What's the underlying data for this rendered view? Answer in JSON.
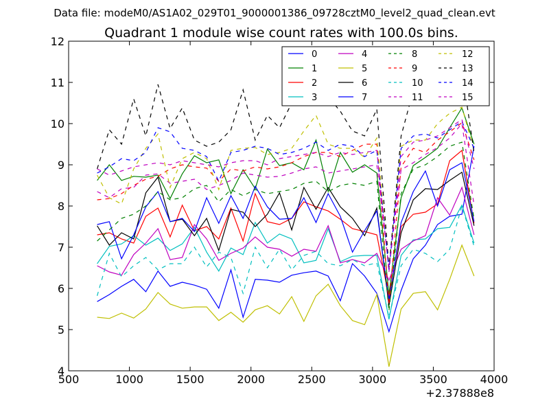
{
  "chart_data": {
    "type": "line",
    "suptitle": "Data file: modeM0/AS1A02_029T01_9000001386_09728cztM0_level2_quad_clean.evt",
    "title": "Quadrant 1 module wise count rates with 100.0s bins.",
    "xlabel": "",
    "ylabel": "",
    "x_offset_label": "+2.37888e8",
    "xlim": [
      500,
      4000
    ],
    "ylim": [
      4,
      12
    ],
    "xticks": [
      500,
      1000,
      1500,
      2000,
      2500,
      3000,
      3500,
      4000
    ],
    "yticks": [
      4,
      5,
      6,
      7,
      8,
      9,
      10,
      11,
      12
    ],
    "grid": false,
    "legend_location": "top-right",
    "legend_columns": 4,
    "x": [
      735,
      835,
      935,
      1035,
      1135,
      1235,
      1335,
      1435,
      1535,
      1635,
      1735,
      1835,
      1935,
      2035,
      2135,
      2235,
      2335,
      2435,
      2535,
      2635,
      2735,
      2835,
      2935,
      3035,
      3135,
      3235,
      3335,
      3435,
      3535,
      3635,
      3735,
      3835
    ],
    "series": [
      {
        "name": "0",
        "color": "#0000ff",
        "dash": "solid",
        "values": [
          5.68,
          5.85,
          6.05,
          6.22,
          5.92,
          6.42,
          6.05,
          6.15,
          6.08,
          5.98,
          5.52,
          6.45,
          5.3,
          6.22,
          6.2,
          6.15,
          6.32,
          6.38,
          6.42,
          6.3,
          5.7,
          6.6,
          6.3,
          5.88,
          4.95,
          5.95,
          6.72,
          7.05,
          7.55,
          7.75,
          7.8,
          9.45
        ]
      },
      {
        "name": "1",
        "color": "#008000",
        "dash": "solid",
        "values": [
          8.62,
          9.0,
          8.62,
          8.72,
          8.7,
          8.75,
          8.18,
          8.78,
          9.22,
          9.05,
          9.12,
          8.3,
          8.88,
          8.42,
          9.38,
          8.98,
          9.05,
          8.88,
          9.6,
          8.35,
          9.3,
          8.82,
          9.0,
          8.8,
          5.85,
          8.2,
          8.98,
          9.18,
          9.4,
          9.9,
          10.38,
          9.5
        ]
      },
      {
        "name": "2",
        "color": "#ff0000",
        "dash": "solid",
        "values": [
          7.3,
          7.35,
          7.2,
          7.1,
          7.75,
          7.95,
          7.25,
          8.02,
          7.4,
          7.5,
          7.2,
          7.95,
          7.15,
          8.3,
          7.62,
          7.55,
          7.7,
          8.1,
          7.98,
          7.88,
          7.68,
          7.45,
          7.38,
          7.3,
          5.78,
          7.5,
          7.8,
          7.85,
          8.05,
          9.1,
          9.35,
          7.58
        ]
      },
      {
        "name": "3",
        "color": "#00bfbf",
        "dash": "solid",
        "values": [
          6.6,
          7.02,
          7.08,
          7.28,
          7.05,
          7.22,
          6.92,
          7.08,
          7.48,
          6.88,
          6.42,
          6.98,
          6.82,
          7.6,
          7.1,
          7.32,
          7.2,
          6.62,
          6.68,
          7.45,
          6.65,
          6.78,
          6.8,
          6.8,
          5.25,
          6.8,
          7.18,
          7.2,
          7.45,
          7.48,
          8.02,
          7.1
        ]
      },
      {
        "name": "4",
        "color": "#bf00bf",
        "dash": "solid",
        "values": [
          6.55,
          6.4,
          6.32,
          6.82,
          7.1,
          7.45,
          6.7,
          6.75,
          7.55,
          7.2,
          6.68,
          6.85,
          6.98,
          7.25,
          7.0,
          6.95,
          6.78,
          6.95,
          6.9,
          7.52,
          6.62,
          6.7,
          6.62,
          6.85,
          6.2,
          6.95,
          7.15,
          7.28,
          8.2,
          7.78,
          8.45,
          7.3
        ]
      },
      {
        "name": "5",
        "color": "#bfbf00",
        "dash": "solid",
        "values": [
          5.3,
          5.27,
          5.4,
          5.28,
          5.5,
          5.9,
          5.62,
          5.52,
          5.55,
          5.55,
          5.22,
          5.42,
          5.18,
          5.48,
          5.58,
          5.38,
          5.8,
          5.2,
          5.82,
          6.1,
          5.58,
          5.22,
          5.12,
          5.85,
          4.1,
          5.5,
          5.88,
          5.92,
          5.48,
          6.22,
          7.05,
          6.3
        ]
      },
      {
        "name": "6",
        "color": "#000000",
        "dash": "solid",
        "values": [
          7.52,
          7.05,
          7.35,
          7.2,
          8.32,
          8.7,
          7.62,
          7.68,
          7.28,
          7.7,
          6.92,
          7.92,
          7.85,
          7.5,
          7.8,
          8.32,
          7.42,
          8.45,
          7.92,
          8.45,
          7.98,
          7.7,
          7.28,
          7.95,
          5.58,
          7.35,
          8.15,
          8.42,
          8.4,
          8.62,
          8.82,
          7.52
        ]
      },
      {
        "name": "7",
        "color": "#0000ff",
        "dash": "solid",
        "values": [
          7.55,
          7.62,
          6.72,
          7.3,
          7.98,
          8.35,
          7.62,
          7.7,
          7.38,
          8.2,
          7.58,
          8.25,
          7.7,
          8.48,
          7.98,
          7.68,
          7.7,
          8.2,
          7.6,
          8.3,
          7.75,
          6.88,
          7.4,
          7.88,
          5.7,
          7.6,
          8.35,
          8.85,
          8.0,
          8.88,
          9.05,
          7.62
        ]
      },
      {
        "name": "8",
        "color": "#008000",
        "dash": "dashed",
        "values": [
          7.15,
          7.42,
          7.7,
          7.8,
          8.0,
          8.35,
          8.15,
          8.2,
          8.42,
          8.5,
          8.1,
          8.4,
          8.25,
          8.4,
          8.3,
          8.35,
          8.4,
          8.55,
          8.6,
          8.35,
          8.5,
          8.55,
          8.5,
          8.6,
          5.45,
          8.3,
          8.9,
          9.0,
          9.2,
          9.45,
          9.55,
          7.68
        ]
      },
      {
        "name": "9",
        "color": "#ff0000",
        "dash": "dashed",
        "values": [
          8.15,
          8.18,
          8.3,
          8.5,
          8.65,
          8.72,
          8.9,
          9.0,
          8.95,
          8.92,
          8.6,
          8.9,
          8.85,
          8.95,
          8.9,
          8.95,
          9.05,
          9.2,
          9.3,
          9.3,
          9.2,
          9.35,
          9.5,
          9.5,
          5.6,
          8.95,
          9.4,
          9.3,
          9.6,
          9.8,
          10.02,
          9.12
        ]
      },
      {
        "name": "10",
        "color": "#00bfbf",
        "dash": "dashed",
        "values": [
          5.82,
          6.85,
          6.28,
          6.55,
          6.75,
          6.45,
          6.6,
          6.6,
          7.0,
          6.52,
          6.88,
          6.75,
          5.88,
          7.0,
          6.5,
          6.95,
          6.45,
          6.8,
          6.9,
          6.6,
          6.55,
          6.7,
          6.55,
          6.62,
          5.3,
          6.55,
          6.95,
          6.85,
          6.65,
          6.95,
          8.0,
          7.02
        ]
      },
      {
        "name": "11",
        "color": "#bf00bf",
        "dash": "dashed",
        "values": [
          8.35,
          8.2,
          8.42,
          8.45,
          8.75,
          8.78,
          8.55,
          8.6,
          8.65,
          8.4,
          8.5,
          8.62,
          8.8,
          8.75,
          8.7,
          8.72,
          8.8,
          8.9,
          8.95,
          8.8,
          8.85,
          8.9,
          8.95,
          9.0,
          6.5,
          8.88,
          9.05,
          9.25,
          9.42,
          9.65,
          10.0,
          8.02
        ]
      },
      {
        "name": "12",
        "color": "#bfbf00",
        "dash": "dashed",
        "values": [
          8.75,
          8.2,
          8.05,
          8.9,
          9.4,
          9.75,
          8.45,
          9.15,
          9.3,
          9.15,
          8.4,
          9.35,
          9.4,
          9.42,
          9.25,
          9.3,
          9.4,
          9.82,
          10.2,
          9.5,
          9.4,
          9.4,
          9.18,
          9.65,
          6.5,
          9.45,
          9.6,
          9.6,
          10.0,
          10.25,
          10.4,
          9.35
        ]
      },
      {
        "name": "13",
        "color": "#000000",
        "dash": "dashed",
        "values": [
          8.9,
          9.85,
          9.5,
          10.6,
          9.7,
          10.95,
          9.88,
          10.38,
          9.6,
          9.45,
          9.55,
          9.85,
          10.82,
          9.6,
          10.2,
          9.9,
          10.5,
          10.55,
          10.6,
          10.65,
          10.3,
          9.82,
          9.7,
          10.35,
          6.5,
          9.7,
          10.8,
          11.0,
          10.95,
          10.7,
          11.3,
          9.3
        ]
      },
      {
        "name": "14",
        "color": "#0000ff",
        "dash": "dashed",
        "values": [
          8.8,
          8.95,
          9.15,
          9.1,
          9.3,
          9.9,
          9.8,
          9.4,
          9.35,
          9.2,
          8.6,
          9.3,
          9.35,
          9.45,
          9.4,
          9.25,
          9.3,
          9.4,
          9.55,
          9.35,
          9.5,
          9.45,
          9.2,
          9.35,
          6.45,
          9.4,
          9.7,
          9.75,
          9.65,
          9.85,
          10.05,
          9.4
        ]
      },
      {
        "name": "15",
        "color": "#bf00bf",
        "dash": "dashed",
        "values": [
          8.9,
          8.75,
          8.85,
          8.95,
          9.0,
          9.05,
          9.0,
          9.1,
          9.05,
          9.0,
          8.95,
          9.05,
          9.1,
          9.1,
          9.0,
          9.15,
          9.2,
          9.25,
          9.3,
          9.2,
          9.3,
          9.25,
          9.3,
          9.35,
          6.4,
          9.2,
          9.55,
          9.6,
          9.7,
          9.9,
          10.1,
          8.9
        ]
      }
    ]
  }
}
